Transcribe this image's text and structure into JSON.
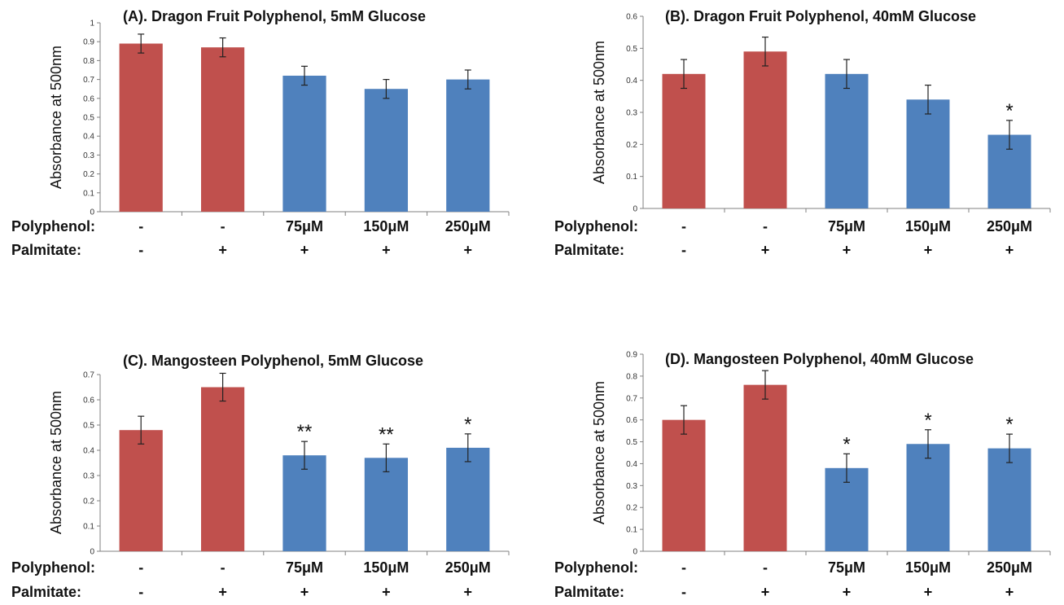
{
  "colors": {
    "control": "#c0504d",
    "treated": "#4f81bd",
    "axis": "#808080"
  },
  "row_labels": {
    "polyphenol": "Polyphenol:",
    "palmitate": "Palmitate:"
  },
  "chart_data": [
    {
      "type": "bar",
      "title": "(A).   Dragon Fruit Polyphenol, 5mM Glucose",
      "ylabel": "Absorbance at 500nm",
      "ylim": [
        0,
        1
      ],
      "yticks": [
        "0",
        "0.1",
        "0.2",
        "0.3",
        "0.4",
        "0.5",
        "0.6",
        "0.7",
        "0.8",
        "0.9",
        "1"
      ],
      "polyphenol": [
        "-",
        "-",
        "75μM",
        "150μM",
        "250μM"
      ],
      "palmitate": [
        "-",
        "+",
        "+",
        "+",
        "+"
      ],
      "values": [
        0.89,
        0.87,
        0.72,
        0.65,
        0.7
      ],
      "errors": [
        0.05,
        0.05,
        0.05,
        0.05,
        0.05
      ],
      "bar_colors": [
        "control",
        "control",
        "treated",
        "treated",
        "treated"
      ],
      "significance": [
        "",
        "",
        "",
        "",
        ""
      ]
    },
    {
      "type": "bar",
      "title": "(B).   Dragon Fruit Polyphenol, 40mM Glucose",
      "ylabel": "Absorbance at 500nm",
      "ylim": [
        0,
        0.6
      ],
      "yticks": [
        "0",
        "0.1",
        "0.2",
        "0.3",
        "0.4",
        "0.5",
        "0.6"
      ],
      "polyphenol": [
        "-",
        "-",
        "75μM",
        "150μM",
        "250μM"
      ],
      "palmitate": [
        "-",
        "+",
        "+",
        "+",
        "+"
      ],
      "values": [
        0.42,
        0.49,
        0.42,
        0.34,
        0.23
      ],
      "errors": [
        0.045,
        0.045,
        0.045,
        0.045,
        0.045
      ],
      "bar_colors": [
        "control",
        "control",
        "treated",
        "treated",
        "treated"
      ],
      "significance": [
        "",
        "",
        "",
        "",
        "*"
      ]
    },
    {
      "type": "bar",
      "title": "(C).   Mangosteen Polyphenol, 5mM Glucose",
      "ylabel": "Absorbance at 500nm",
      "ylim": [
        0,
        0.7
      ],
      "yticks": [
        "0",
        "0.1",
        "0.2",
        "0.3",
        "0.4",
        "0.5",
        "0.6",
        "0.7"
      ],
      "polyphenol": [
        "-",
        "-",
        "75μM",
        "150μM",
        "250μM"
      ],
      "palmitate": [
        "-",
        "+",
        "+",
        "+",
        "+"
      ],
      "values": [
        0.48,
        0.65,
        0.38,
        0.37,
        0.41
      ],
      "errors": [
        0.055,
        0.055,
        0.055,
        0.055,
        0.055
      ],
      "bar_colors": [
        "control",
        "control",
        "treated",
        "treated",
        "treated"
      ],
      "significance": [
        "",
        "",
        "**",
        "**",
        "*"
      ]
    },
    {
      "type": "bar",
      "title": "(D).   Mangosteen Polyphenol, 40mM Glucose",
      "ylabel": "Absorbance at 500nm",
      "ylim": [
        0,
        0.9
      ],
      "yticks": [
        "0",
        "0.1",
        "0.2",
        "0.3",
        "0.4",
        "0.5",
        "0.6",
        "0.7",
        "0.8",
        "0.9"
      ],
      "polyphenol": [
        "-",
        "-",
        "75μM",
        "150μM",
        "250μM"
      ],
      "palmitate": [
        "-",
        "+",
        "+",
        "+",
        "+"
      ],
      "values": [
        0.6,
        0.76,
        0.38,
        0.49,
        0.47
      ],
      "errors": [
        0.065,
        0.065,
        0.065,
        0.065,
        0.065
      ],
      "bar_colors": [
        "control",
        "control",
        "treated",
        "treated",
        "treated"
      ],
      "significance": [
        "",
        "",
        "*",
        "*",
        "*"
      ]
    }
  ]
}
